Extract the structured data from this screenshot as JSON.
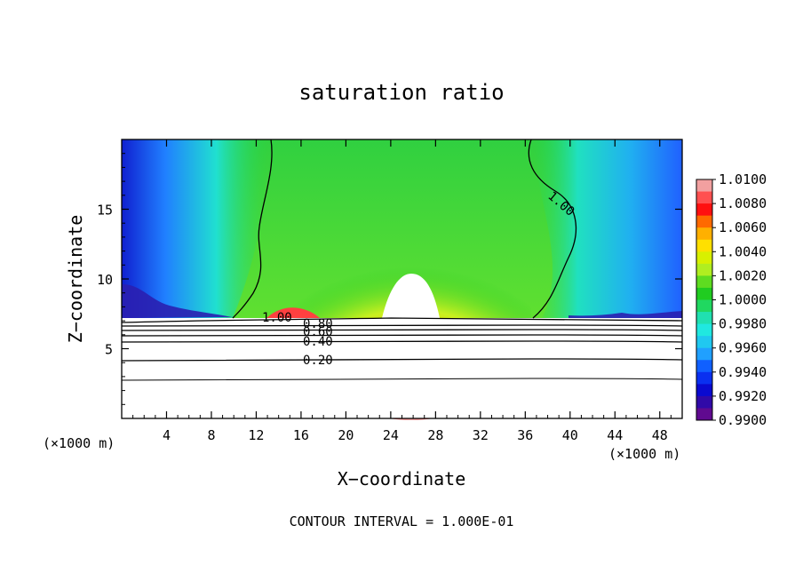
{
  "chart_data": {
    "type": "heatmap",
    "title": "saturation ratio",
    "xlabel": "X−coordinate",
    "ylabel": "Z−coordinate",
    "x_unit": "(×1000 m)",
    "z_unit": "(×1000 m)",
    "xlim": [
      0,
      50
    ],
    "ylim": [
      0,
      20
    ],
    "xticks": [
      4,
      8,
      12,
      16,
      20,
      24,
      28,
      32,
      36,
      40,
      44,
      48
    ],
    "yticks": [
      5,
      10,
      15
    ],
    "colorbar": {
      "levels": [
        "1.0100",
        "1.0080",
        "1.0060",
        "1.0040",
        "1.0020",
        "1.0000",
        "0.9980",
        "0.9960",
        "0.9940",
        "0.9920",
        "0.9900"
      ],
      "colors": [
        "#f2a0a0",
        "#ff5050",
        "#ff1010",
        "#ff6a00",
        "#ffb000",
        "#ffe000",
        "#d8f000",
        "#b0ee20",
        "#5edc20",
        "#20cc20",
        "#20d860",
        "#20e0b0",
        "#20e8e0",
        "#20c8f0",
        "#20a0ff",
        "#1060ff",
        "#0a30f0",
        "#0a0ad0",
        "#300aa8",
        "#600a90"
      ]
    },
    "contour_labels": [
      "1.00",
      "0.80",
      "0.60",
      "0.40",
      "0.20",
      "1.00"
    ],
    "contour_interval_text": "CONTOUR INTERVAL = 1.000E-01",
    "grid": false,
    "legend": "right"
  }
}
